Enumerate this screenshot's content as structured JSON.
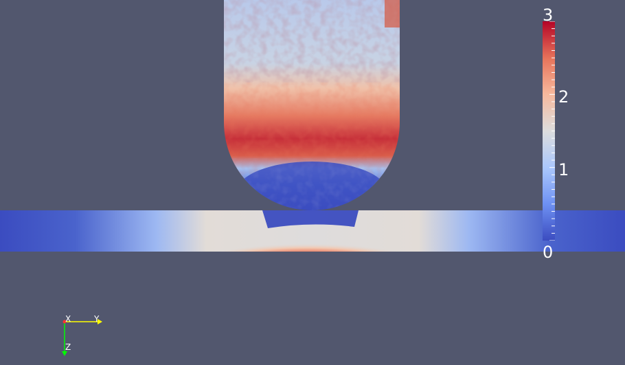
{
  "scalar_bar": {
    "range": [
      0,
      3
    ],
    "labels": [
      {
        "text": "3",
        "value": 3
      },
      {
        "text": "2",
        "value": 2
      },
      {
        "text": "1",
        "value": 1
      },
      {
        "text": "0",
        "value": 0
      }
    ],
    "colormap": [
      "#3b4cc0",
      "#6f92f3",
      "#aac7fd",
      "#dddddd",
      "#f7b89c",
      "#e7745b",
      "#b40426"
    ]
  },
  "orientation_axes": {
    "x_label": "X",
    "y_label": "Y",
    "z_label": "Z",
    "x_color": "#ff3030",
    "y_color": "#ffff00",
    "z_color": "#00ff00"
  },
  "colors": {
    "background": "#52576e",
    "low": "#3b4cc0",
    "high": "#b40426"
  }
}
